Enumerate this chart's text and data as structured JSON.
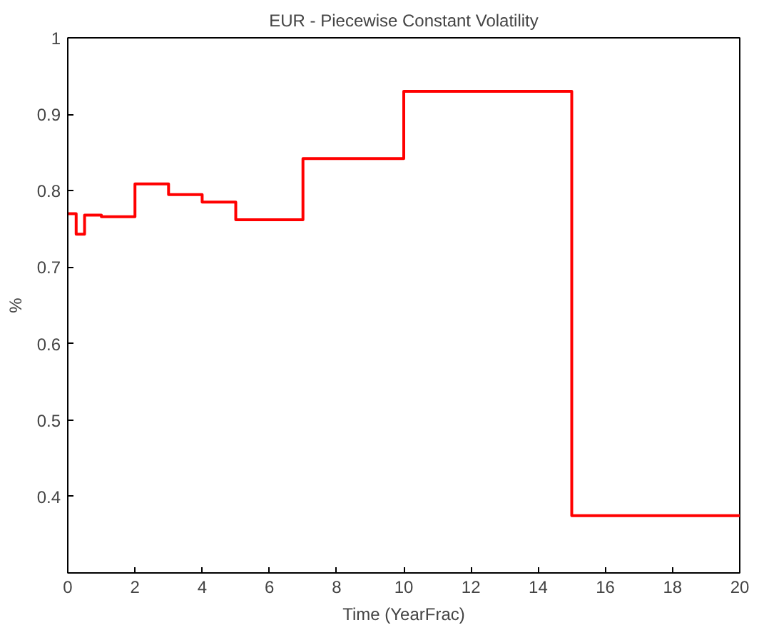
{
  "chart_data": {
    "type": "step",
    "title": "EUR - Piecewise Constant Volatility",
    "xlabel": "Time (YearFrac)",
    "ylabel": "%",
    "x": [
      0,
      0.25,
      0.5,
      1,
      2,
      3,
      4,
      5,
      7,
      10,
      15,
      20
    ],
    "series": [
      {
        "color": "#ff0000",
        "values": [
          0.77,
          0.743,
          0.768,
          0.766,
          0.809,
          0.795,
          0.785,
          0.762,
          0.842,
          0.93,
          0.375,
          0.375
        ]
      }
    ],
    "xlim": [
      0,
      20
    ],
    "ylim": [
      0.3,
      1
    ],
    "xticks": [
      0,
      2,
      4,
      6,
      8,
      10,
      12,
      14,
      16,
      18,
      20
    ],
    "yticks": [
      0.4,
      0.5,
      0.6,
      0.7,
      0.8,
      0.9,
      1
    ],
    "grid": false
  }
}
